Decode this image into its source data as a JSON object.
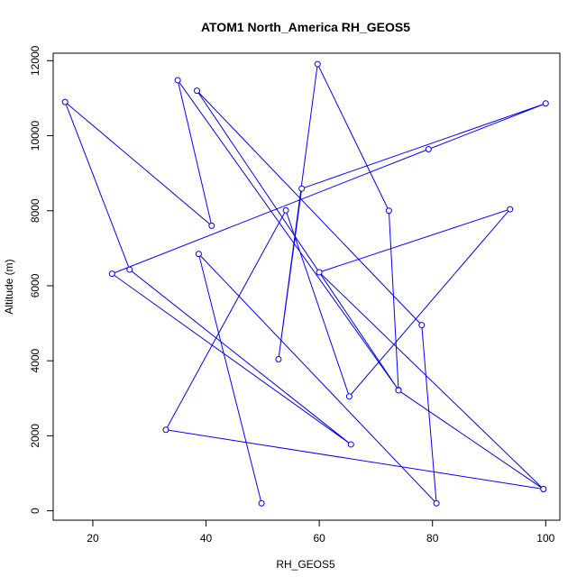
{
  "chart_data": {
    "type": "line",
    "title": "ATOM1 North_America RH_GEOS5",
    "xlabel": "RH_GEOS5",
    "ylabel": "Altitude (m)",
    "xlim": [
      13,
      102.5
    ],
    "ylim": [
      -250,
      12200
    ],
    "x_ticks": [
      20,
      40,
      60,
      80,
      100
    ],
    "y_ticks": [
      0,
      2000,
      4000,
      6000,
      8000,
      10000,
      12000
    ],
    "grid": false,
    "legend": "none",
    "series_color": "#0000FF",
    "series": [
      {
        "points": [
          {
            "x": 49.8,
            "y": 200
          },
          {
            "x": 38.7,
            "y": 6850
          },
          {
            "x": 80.7,
            "y": 200
          },
          {
            "x": 78.1,
            "y": 4950
          },
          {
            "x": 38.4,
            "y": 11200
          },
          {
            "x": 74.0,
            "y": 3220
          },
          {
            "x": 35.0,
            "y": 11480
          },
          {
            "x": 41.0,
            "y": 7600
          },
          {
            "x": 15.1,
            "y": 10900
          },
          {
            "x": 26.5,
            "y": 6430
          },
          {
            "x": 65.6,
            "y": 1770
          },
          {
            "x": 23.4,
            "y": 6320
          },
          {
            "x": 79.3,
            "y": 9640
          },
          {
            "x": 100.0,
            "y": 10860
          },
          {
            "x": 56.9,
            "y": 8590
          },
          {
            "x": 52.8,
            "y": 4040
          },
          {
            "x": 59.7,
            "y": 11910
          },
          {
            "x": 72.3,
            "y": 8000
          },
          {
            "x": 74.0,
            "y": 3210
          },
          {
            "x": 99.6,
            "y": 580
          },
          {
            "x": 32.9,
            "y": 2160
          },
          {
            "x": 54.1,
            "y": 8010
          },
          {
            "x": 65.3,
            "y": 3050
          },
          {
            "x": 93.7,
            "y": 8040
          },
          {
            "x": 60.0,
            "y": 6360
          },
          {
            "x": 99.6,
            "y": 580
          }
        ]
      }
    ]
  }
}
